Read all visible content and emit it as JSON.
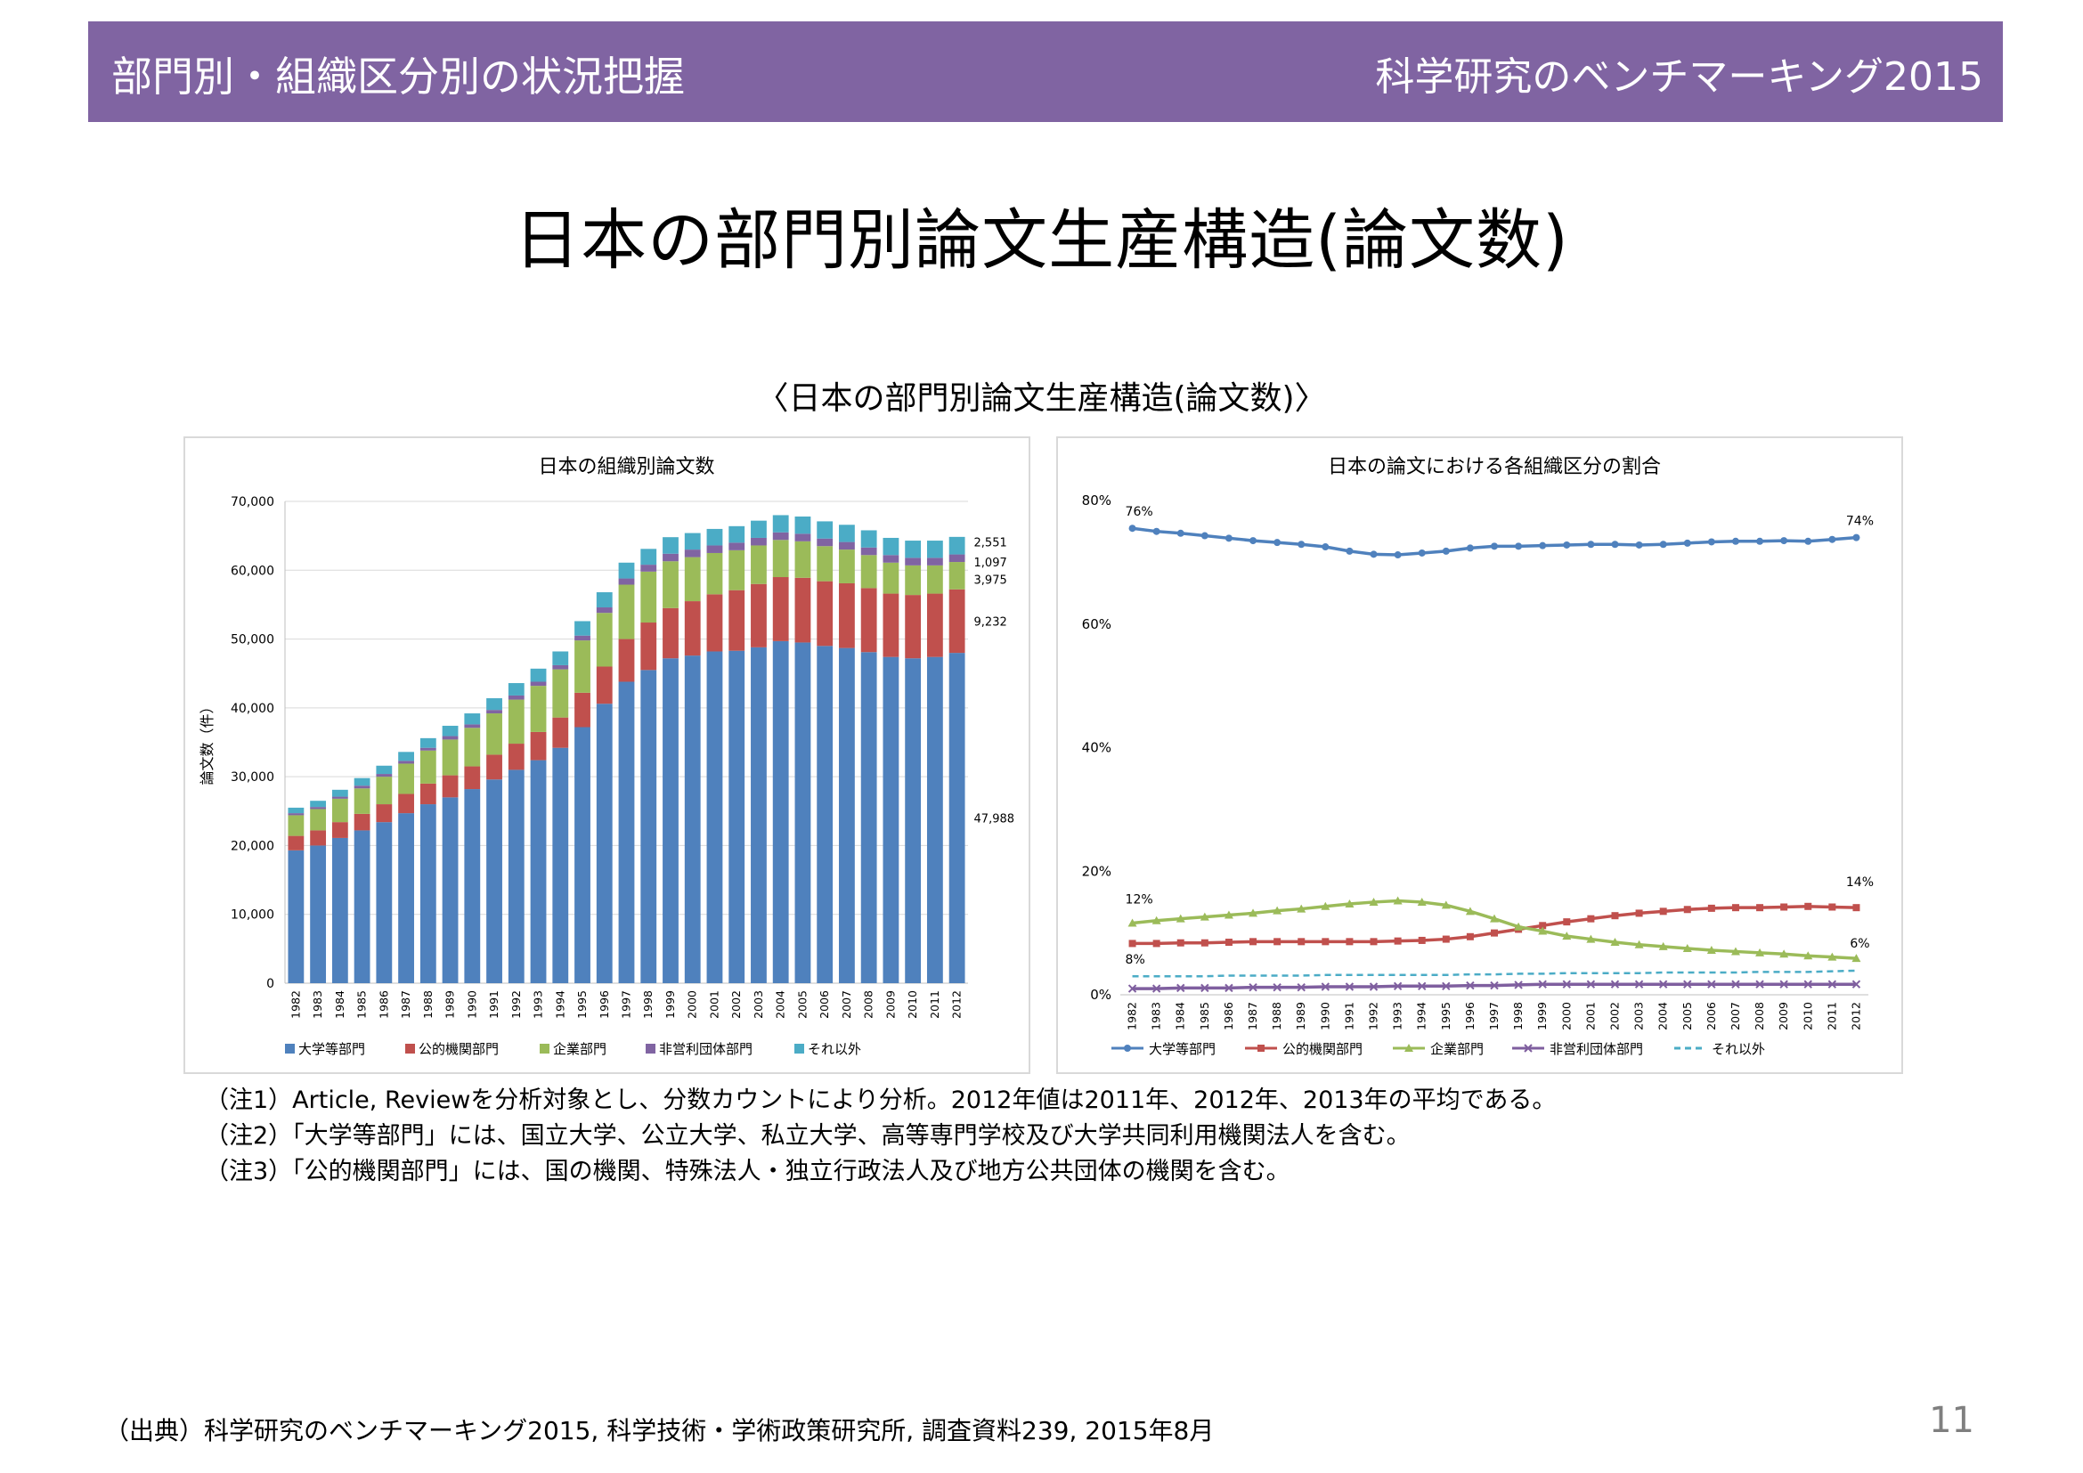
{
  "header": {
    "left": "部門別・組織区分別の状況把握",
    "right": "科学研究のベンチマーキング2015",
    "bg_color": "#8064a2"
  },
  "title": "日本の部門別論文生産構造(論文数)",
  "subtitle": "〈日本の部門別論文生産構造(論文数)〉",
  "chart_data": [
    {
      "type": "bar",
      "stacked": true,
      "title": "日本の組織別論文数",
      "ylabel": "論文数（件）",
      "ylim": [
        0,
        70000
      ],
      "yticks": [
        "0",
        "10,000",
        "20,000",
        "30,000",
        "40,000",
        "50,000",
        "60,000",
        "70,000"
      ],
      "categories": [
        "1982",
        "1983",
        "1984",
        "1985",
        "1986",
        "1987",
        "1988",
        "1989",
        "1990",
        "1991",
        "1992",
        "1993",
        "1994",
        "1995",
        "1996",
        "1997",
        "1998",
        "1999",
        "2000",
        "2001",
        "2002",
        "2003",
        "2004",
        "2005",
        "2006",
        "2007",
        "2008",
        "2009",
        "2010",
        "2011",
        "2012"
      ],
      "series": [
        {
          "name": "大学等部門",
          "color": "#4f81bd",
          "values": [
            19300,
            20000,
            21100,
            22200,
            23400,
            24700,
            26000,
            27000,
            28200,
            29600,
            31000,
            32400,
            34200,
            37200,
            40600,
            43800,
            45500,
            47200,
            47600,
            48200,
            48300,
            48800,
            49700,
            49500,
            49000,
            48700,
            48100,
            47400,
            47200,
            47400,
            47988
          ]
        },
        {
          "name": "公的機関部門",
          "color": "#c0504d",
          "values": [
            2100,
            2200,
            2300,
            2400,
            2600,
            2800,
            3000,
            3200,
            3300,
            3600,
            3800,
            4100,
            4400,
            5000,
            5400,
            6200,
            6900,
            7300,
            7900,
            8300,
            8800,
            9200,
            9300,
            9400,
            9400,
            9400,
            9300,
            9200,
            9200,
            9200,
            9232
          ]
        },
        {
          "name": "企業部門",
          "color": "#9bbb59",
          "values": [
            3000,
            3100,
            3400,
            3700,
            4000,
            4400,
            4800,
            5200,
            5600,
            6000,
            6400,
            6700,
            7000,
            7600,
            7800,
            7900,
            7400,
            6800,
            6400,
            6000,
            5800,
            5600,
            5400,
            5300,
            5100,
            4900,
            4800,
            4500,
            4300,
            4100,
            3975
          ]
        },
        {
          "name": "非営利団体部門",
          "color": "#8064a2",
          "values": [
            300,
            300,
            300,
            400,
            400,
            400,
            400,
            500,
            500,
            500,
            600,
            600,
            600,
            700,
            800,
            900,
            1000,
            1100,
            1100,
            1100,
            1100,
            1100,
            1100,
            1100,
            1100,
            1100,
            1100,
            1100,
            1100,
            1100,
            1097
          ]
        },
        {
          "name": "それ以外",
          "color": "#4bacc6",
          "values": [
            800,
            900,
            1000,
            1100,
            1200,
            1300,
            1400,
            1500,
            1600,
            1700,
            1800,
            1900,
            2000,
            2100,
            2200,
            2300,
            2300,
            2400,
            2400,
            2400,
            2400,
            2500,
            2500,
            2500,
            2500,
            2500,
            2500,
            2500,
            2500,
            2500,
            2551
          ]
        }
      ],
      "end_labels": [
        "2,551",
        "1,097",
        "3,975",
        "9,232",
        "47,988"
      ]
    },
    {
      "type": "line",
      "title": "日本の論文における各組織区分の割合",
      "ylim": [
        0,
        80
      ],
      "yticks": [
        "0%",
        "20%",
        "40%",
        "60%",
        "80%"
      ],
      "x": [
        "1982",
        "1983",
        "1984",
        "1985",
        "1986",
        "1987",
        "1988",
        "1989",
        "1990",
        "1991",
        "1992",
        "1993",
        "1994",
        "1995",
        "1996",
        "1997",
        "1998",
        "1999",
        "2000",
        "2001",
        "2002",
        "2003",
        "2004",
        "2005",
        "2006",
        "2007",
        "2008",
        "2009",
        "2010",
        "2011",
        "2012"
      ],
      "series": [
        {
          "name": "大学等部門",
          "color": "#4f81bd",
          "marker": "circle",
          "values": [
            75.5,
            75,
            74.7,
            74.3,
            73.9,
            73.5,
            73.2,
            72.9,
            72.5,
            71.8,
            71.3,
            71.2,
            71.5,
            71.8,
            72.3,
            72.6,
            72.6,
            72.7,
            72.8,
            72.9,
            72.9,
            72.8,
            72.9,
            73.1,
            73.3,
            73.4,
            73.4,
            73.5,
            73.4,
            73.7,
            74
          ]
        },
        {
          "name": "公的機関部門",
          "color": "#c0504d",
          "marker": "square",
          "values": [
            8.3,
            8.3,
            8.4,
            8.4,
            8.5,
            8.6,
            8.6,
            8.6,
            8.6,
            8.6,
            8.6,
            8.7,
            8.8,
            9,
            9.4,
            10,
            10.6,
            11.2,
            11.8,
            12.3,
            12.8,
            13.2,
            13.5,
            13.8,
            14,
            14.1,
            14.1,
            14.2,
            14.3,
            14.2,
            14.1
          ]
        },
        {
          "name": "企業部門",
          "color": "#9bbb59",
          "marker": "triangle",
          "values": [
            11.6,
            12,
            12.3,
            12.6,
            12.9,
            13.2,
            13.6,
            13.9,
            14.3,
            14.7,
            15,
            15.2,
            15,
            14.5,
            13.5,
            12.3,
            11,
            10.3,
            9.5,
            9,
            8.5,
            8.1,
            7.8,
            7.5,
            7.2,
            7,
            6.8,
            6.6,
            6.3,
            6.1,
            5.9
          ]
        },
        {
          "name": "非営利団体部門",
          "color": "#7f5f9f",
          "marker": "x",
          "values": [
            1,
            1,
            1.1,
            1.1,
            1.1,
            1.2,
            1.2,
            1.2,
            1.3,
            1.3,
            1.3,
            1.4,
            1.4,
            1.4,
            1.5,
            1.5,
            1.6,
            1.7,
            1.7,
            1.7,
            1.7,
            1.7,
            1.7,
            1.7,
            1.7,
            1.7,
            1.7,
            1.7,
            1.7,
            1.7,
            1.7
          ]
        },
        {
          "name": "それ以外",
          "color": "#4bacc6",
          "marker": "dashed",
          "values": [
            3,
            3,
            3,
            3,
            3.1,
            3.1,
            3.1,
            3.1,
            3.2,
            3.2,
            3.2,
            3.2,
            3.2,
            3.2,
            3.3,
            3.3,
            3.4,
            3.4,
            3.5,
            3.5,
            3.5,
            3.5,
            3.6,
            3.6,
            3.6,
            3.6,
            3.7,
            3.7,
            3.7,
            3.8,
            3.9
          ]
        }
      ],
      "point_labels": [
        "76%",
        "74%",
        "12%",
        "14%",
        "8%",
        "6%"
      ]
    }
  ],
  "notes": [
    "（注1）Article, Reviewを分析対象とし、分数カウントにより分析。2012年値は2011年、2012年、2013年の平均である。",
    "（注2）「大学等部門」には、国立大学、公立大学、私立大学、高等専門学校及び大学共同利用機関法人を含む。",
    "（注3）「公的機関部門」には、国の機関、特殊法人・独立行政法人及び地方公共団体の機関を含む。"
  ],
  "source": "（出典）科学研究のベンチマーキング2015, 科学技術・学術政策研究所, 調査資料239, 2015年8月",
  "page_number": "11"
}
